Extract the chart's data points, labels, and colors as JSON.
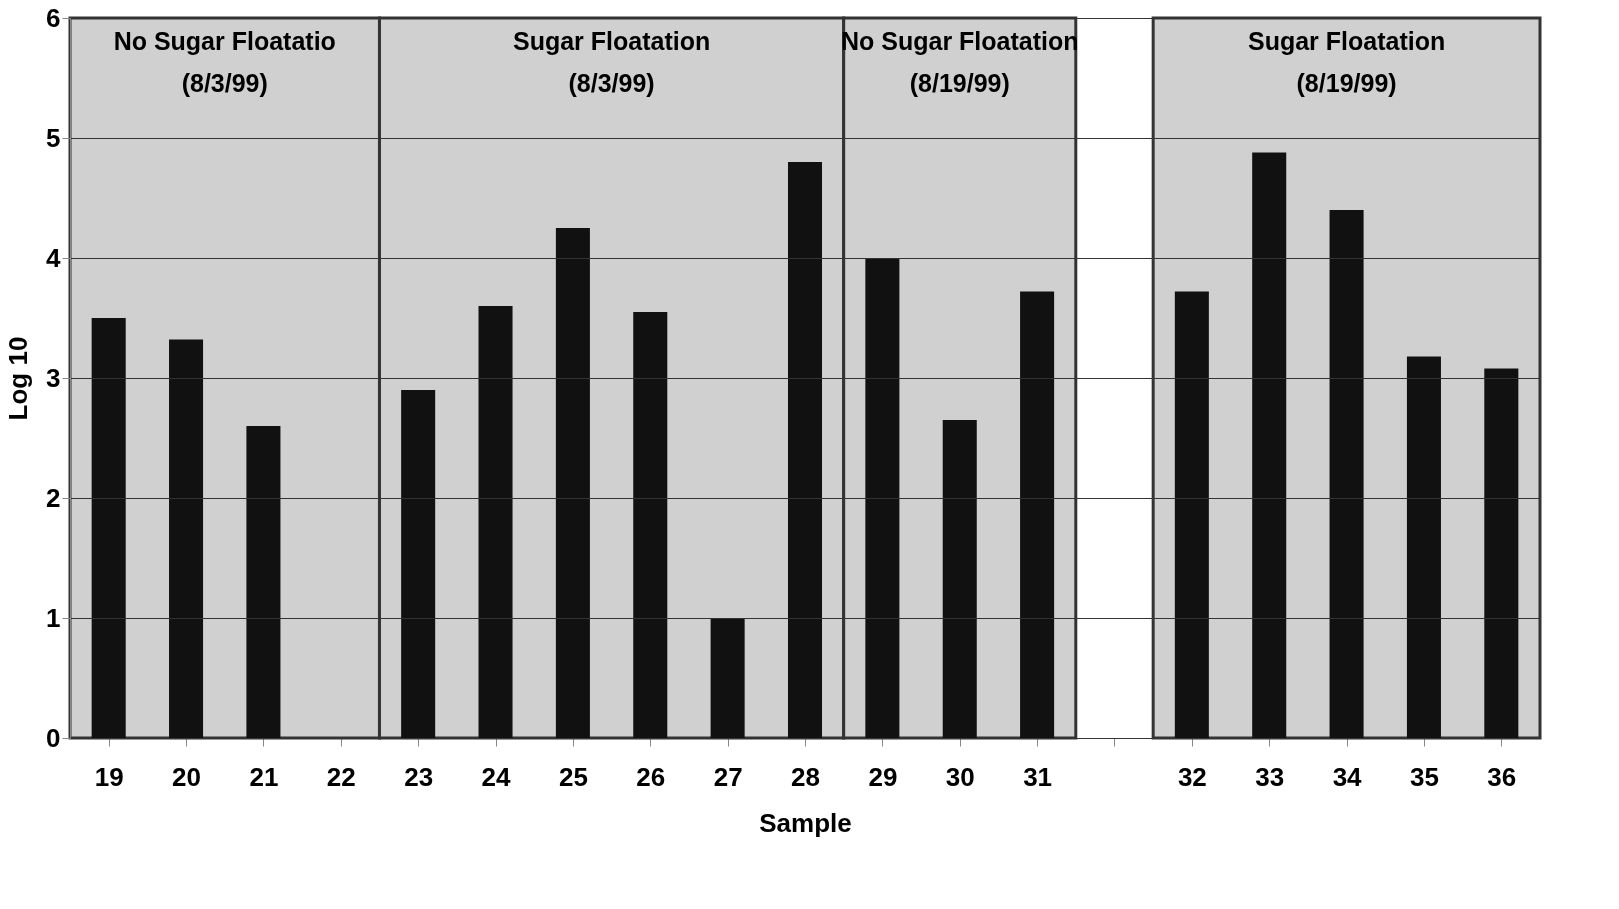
{
  "chart_data": {
    "type": "bar",
    "xlabel": "Sample",
    "ylabel": "Log 10",
    "categories": [
      "19",
      "20",
      "21",
      "22",
      "23",
      "24",
      "25",
      "26",
      "27",
      "28",
      "29",
      "30",
      "31",
      null,
      "32",
      "33",
      "34",
      "35",
      "36"
    ],
    "values": [
      3.5,
      3.32,
      2.6,
      0,
      2.9,
      3.6,
      4.25,
      3.55,
      1.0,
      4.8,
      4.0,
      2.65,
      3.72,
      null,
      3.72,
      4.88,
      4.4,
      3.18,
      3.08
    ],
    "color": "#111111",
    "ylim": [
      0,
      6
    ],
    "yticks": [
      0,
      1,
      2,
      3,
      4,
      5,
      6
    ],
    "grid": "y",
    "bands": [
      {
        "axis": "x",
        "from": "19",
        "to": "22",
        "label": "No Sugar Floatatio\n(8/3/99)",
        "color": "#d0d0d0"
      },
      {
        "axis": "x",
        "from": "23",
        "to": "28",
        "label": "Sugar Floatation\n(8/3/99)",
        "color": "#d0d0d0"
      },
      {
        "axis": "x",
        "from": "29",
        "to": "31",
        "label": "No Sugar Floatation\n(8/19/99)",
        "color": "#d0d0d0"
      },
      {
        "axis": "x",
        "from": "32",
        "to": "36",
        "label": "Sugar Floatation\n(8/19/99)",
        "color": "#d0d0d0"
      }
    ]
  }
}
